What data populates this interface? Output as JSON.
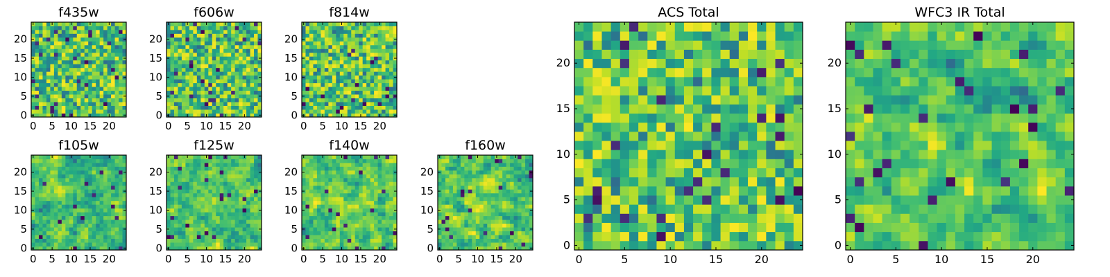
{
  "chart_data": [
    {
      "type": "heatmap",
      "title": "f435w",
      "x_ticks": [
        0,
        5,
        10,
        15,
        20
      ],
      "y_ticks": [
        0,
        5,
        10,
        15,
        20
      ],
      "grid_size": 25,
      "colormap": "viridis",
      "seed": 11,
      "smooth": 0,
      "texture": "noisy"
    },
    {
      "type": "heatmap",
      "title": "f606w",
      "x_ticks": [
        0,
        5,
        10,
        15,
        20
      ],
      "y_ticks": [
        0,
        5,
        10,
        15,
        20
      ],
      "grid_size": 25,
      "colormap": "viridis",
      "seed": 23,
      "smooth": 0,
      "texture": "noisy"
    },
    {
      "type": "heatmap",
      "title": "f814w",
      "x_ticks": [
        0,
        5,
        10,
        15,
        20
      ],
      "y_ticks": [
        0,
        5,
        10,
        15,
        20
      ],
      "grid_size": 25,
      "colormap": "viridis",
      "seed": 37,
      "smooth": 0,
      "texture": "noisy"
    },
    {
      "type": "heatmap",
      "title": "f105w",
      "x_ticks": [
        0,
        5,
        10,
        15,
        20
      ],
      "y_ticks": [
        0,
        5,
        10,
        15,
        20
      ],
      "grid_size": 25,
      "colormap": "viridis",
      "seed": 41,
      "smooth": 1,
      "texture": "smooth"
    },
    {
      "type": "heatmap",
      "title": "f125w",
      "x_ticks": [
        0,
        5,
        10,
        15,
        20
      ],
      "y_ticks": [
        0,
        5,
        10,
        15,
        20
      ],
      "grid_size": 25,
      "colormap": "viridis",
      "seed": 53,
      "smooth": 1,
      "texture": "smooth"
    },
    {
      "type": "heatmap",
      "title": "f140w",
      "x_ticks": [
        0,
        5,
        10,
        15,
        20
      ],
      "y_ticks": [
        0,
        5,
        10,
        15,
        20
      ],
      "grid_size": 25,
      "colormap": "viridis",
      "seed": 67,
      "smooth": 1,
      "texture": "smooth"
    },
    {
      "type": "heatmap",
      "title": "f160w",
      "x_ticks": [
        0,
        5,
        10,
        15,
        20
      ],
      "y_ticks": [
        0,
        5,
        10,
        15,
        20
      ],
      "grid_size": 25,
      "colormap": "viridis",
      "seed": 71,
      "smooth": 1,
      "texture": "smooth"
    },
    {
      "type": "heatmap",
      "title": "ACS Total",
      "x_ticks": [
        0,
        5,
        10,
        15,
        20
      ],
      "y_ticks": [
        0,
        5,
        10,
        15,
        20
      ],
      "grid_size": 25,
      "colormap": "viridis",
      "seed": 83,
      "smooth": 0,
      "texture": "noisy"
    },
    {
      "type": "heatmap",
      "title": "WFC3 IR Total",
      "x_ticks": [
        0,
        5,
        10,
        15,
        20
      ],
      "y_ticks": [
        0,
        5,
        10,
        15,
        20
      ],
      "grid_size": 25,
      "colormap": "viridis",
      "seed": 97,
      "smooth": 1,
      "texture": "smooth"
    }
  ],
  "palette": {
    "viridis_low": "#440154",
    "viridis_mid": "#21918c",
    "viridis_high": "#fde725",
    "axes": "#000000",
    "background": "#ffffff"
  }
}
